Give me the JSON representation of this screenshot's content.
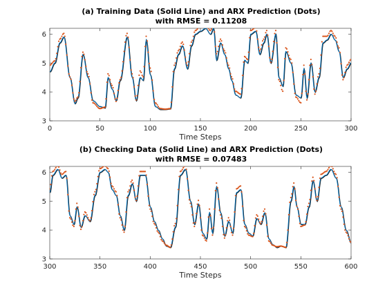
{
  "chart_data": [
    {
      "type": "line",
      "title_line1": "(a) Training Data (Solid Line) and ARX Prediction (Dots)",
      "title_line2": "with RMSE = 0.11208",
      "xlabel": "Time Steps",
      "ylabel": "",
      "xlim": [
        0,
        300
      ],
      "ylim": [
        3,
        6.2
      ],
      "xticks": [
        0,
        50,
        100,
        150,
        200,
        250,
        300
      ],
      "yticks": [
        3,
        4,
        5,
        6
      ],
      "grid": false,
      "series": [
        {
          "style": "solid-line",
          "color": "#0072BD",
          "x": [
            0,
            5,
            10,
            14,
            20,
            25,
            28,
            33,
            38,
            43,
            50,
            55,
            58,
            62,
            66,
            70,
            77,
            82,
            86,
            90,
            93,
            96,
            100,
            105,
            110,
            115,
            120,
            124,
            128,
            132,
            137,
            141,
            145,
            150,
            155,
            160,
            163,
            166,
            170,
            174,
            178,
            181,
            185,
            190,
            194,
            197,
            200,
            205,
            209,
            213,
            216,
            220,
            225,
            228,
            232,
            235,
            240,
            245,
            250,
            253,
            256,
            260,
            264,
            268,
            272,
            276,
            280,
            284,
            288,
            292,
            296,
            300
          ],
          "y": [
            4.7,
            5.0,
            5.7,
            5.9,
            4.5,
            3.6,
            3.8,
            5.3,
            4.5,
            3.7,
            3.5,
            3.45,
            4.5,
            4.1,
            3.7,
            4.4,
            5.9,
            4.5,
            3.7,
            4.5,
            4.4,
            5.8,
            4.6,
            3.5,
            3.4,
            3.4,
            3.42,
            4.8,
            5.3,
            5.6,
            4.8,
            5.6,
            6.0,
            6.1,
            6.2,
            6.0,
            6.2,
            5.1,
            5.7,
            5.3,
            4.8,
            4.4,
            3.9,
            3.8,
            5.1,
            5.0,
            6.0,
            6.1,
            5.3,
            5.7,
            6.0,
            5.0,
            6.0,
            4.5,
            4.2,
            5.4,
            5.0,
            3.9,
            3.8,
            4.8,
            3.8,
            5.0,
            4.0,
            4.5,
            5.7,
            5.8,
            6.0,
            5.8,
            5.4,
            4.5,
            4.8,
            5.0
          ]
        },
        {
          "style": "dots",
          "color": "#D95319",
          "x": [
            0,
            5,
            10,
            14,
            20,
            25,
            28,
            33,
            38,
            43,
            50,
            55,
            58,
            62,
            66,
            70,
            77,
            82,
            86,
            90,
            93,
            96,
            100,
            105,
            110,
            115,
            120,
            124,
            128,
            132,
            137,
            141,
            145,
            150,
            155,
            160,
            163,
            166,
            170,
            174,
            178,
            181,
            185,
            190,
            194,
            197,
            200,
            205,
            209,
            213,
            216,
            220,
            225,
            228,
            232,
            235,
            240,
            245,
            250,
            253,
            256,
            260,
            264,
            268,
            272,
            276,
            280,
            284,
            288,
            292,
            296,
            300
          ],
          "y": [
            4.9,
            5.05,
            5.8,
            6.0,
            4.5,
            3.65,
            3.8,
            5.35,
            4.6,
            3.6,
            3.4,
            3.45,
            4.6,
            4.2,
            3.65,
            4.4,
            6.0,
            4.6,
            3.7,
            4.7,
            4.5,
            5.9,
            4.8,
            3.6,
            3.4,
            3.38,
            3.4,
            4.9,
            5.4,
            5.7,
            4.9,
            5.7,
            6.1,
            6.25,
            6.3,
            6.1,
            6.3,
            5.3,
            5.8,
            5.4,
            4.9,
            4.5,
            4.0,
            3.9,
            5.2,
            5.1,
            6.1,
            6.2,
            5.4,
            5.8,
            6.1,
            5.0,
            6.1,
            4.4,
            4.0,
            5.5,
            5.1,
            3.8,
            3.6,
            4.9,
            3.7,
            5.1,
            3.9,
            4.6,
            5.9,
            5.9,
            6.1,
            5.9,
            5.5,
            4.4,
            4.9,
            5.1
          ]
        }
      ]
    },
    {
      "type": "line",
      "title_line1": "(b) Checking Data (Solid Line) and ARX Prediction (Dots)",
      "title_line2": "with RMSE = 0.07483",
      "xlabel": "Time Steps",
      "ylabel": "",
      "xlim": [
        300,
        600
      ],
      "ylim": [
        3,
        6.2
      ],
      "xticks": [
        300,
        350,
        400,
        450,
        500,
        550,
        600
      ],
      "yticks": [
        3,
        4,
        5,
        6
      ],
      "grid": false,
      "series": [
        {
          "style": "solid-line",
          "color": "#0072BD",
          "x": [
            300,
            303,
            308,
            312,
            316,
            320,
            324,
            327,
            331,
            335,
            340,
            345,
            350,
            355,
            358,
            362,
            366,
            370,
            374,
            378,
            382,
            386,
            390,
            395,
            400,
            404,
            408,
            412,
            416,
            420,
            425,
            430,
            435,
            440,
            444,
            448,
            452,
            456,
            459,
            462,
            466,
            470,
            474,
            478,
            482,
            486,
            490,
            494,
            498,
            502,
            506,
            510,
            514,
            518,
            522,
            526,
            530,
            535,
            540,
            543,
            546,
            550,
            554,
            558,
            562,
            566,
            570,
            575,
            580,
            585,
            590,
            595,
            600
          ],
          "y": [
            5.3,
            5.9,
            6.1,
            5.8,
            5.9,
            4.5,
            4.2,
            4.8,
            4.1,
            4.5,
            4.3,
            5.2,
            6.0,
            6.1,
            6.0,
            5.4,
            5.2,
            4.5,
            4.0,
            5.2,
            5.6,
            5.0,
            5.9,
            5.9,
            4.8,
            4.3,
            4.0,
            3.7,
            3.45,
            3.4,
            4.1,
            5.9,
            6.1,
            5.0,
            4.2,
            4.9,
            3.9,
            3.7,
            4.6,
            3.9,
            5.5,
            4.6,
            3.8,
            4.3,
            3.9,
            5.3,
            5.4,
            4.2,
            3.9,
            3.8,
            4.4,
            4.2,
            4.6,
            3.7,
            3.5,
            3.4,
            3.45,
            3.4,
            5.0,
            5.5,
            4.8,
            4.2,
            4.2,
            4.8,
            5.7,
            5.0,
            5.8,
            5.9,
            6.1,
            5.8,
            4.8,
            4.0,
            3.55
          ]
        },
        {
          "style": "dots",
          "color": "#D95319",
          "x": [
            300,
            303,
            308,
            312,
            316,
            320,
            324,
            327,
            331,
            335,
            340,
            345,
            350,
            355,
            358,
            362,
            366,
            370,
            374,
            378,
            382,
            386,
            390,
            395,
            400,
            404,
            408,
            412,
            416,
            420,
            425,
            430,
            435,
            440,
            444,
            448,
            452,
            456,
            459,
            462,
            466,
            470,
            474,
            478,
            482,
            486,
            490,
            494,
            498,
            502,
            506,
            510,
            514,
            518,
            522,
            526,
            530,
            535,
            540,
            543,
            546,
            550,
            554,
            558,
            562,
            566,
            570,
            575,
            580,
            585,
            590,
            595,
            600
          ],
          "y": [
            5.4,
            6.0,
            6.2,
            5.9,
            6.0,
            4.4,
            4.1,
            4.9,
            4.0,
            4.6,
            4.3,
            5.3,
            6.1,
            6.2,
            6.1,
            5.5,
            5.3,
            4.4,
            3.9,
            5.3,
            5.7,
            5.0,
            6.0,
            6.0,
            4.7,
            4.2,
            3.9,
            3.6,
            3.45,
            3.38,
            4.2,
            6.0,
            6.2,
            4.9,
            4.1,
            5.0,
            3.8,
            3.6,
            4.7,
            3.8,
            5.6,
            4.5,
            3.7,
            4.4,
            3.8,
            5.4,
            5.5,
            4.1,
            3.8,
            3.75,
            4.5,
            4.2,
            4.7,
            3.6,
            3.45,
            3.4,
            3.42,
            3.38,
            5.1,
            5.6,
            4.8,
            4.1,
            4.15,
            4.9,
            5.8,
            5.0,
            5.9,
            6.0,
            6.2,
            5.9,
            4.7,
            3.9,
            3.55
          ]
        }
      ]
    }
  ]
}
